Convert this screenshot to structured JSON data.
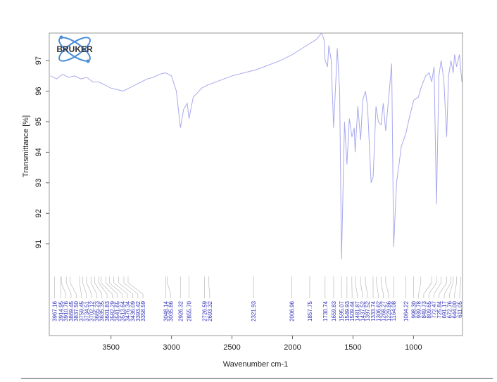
{
  "chart_data": {
    "type": "line",
    "logo": "BRUKER",
    "xlabel": "Wavenumber cm-1",
    "ylabel": "Transmittance [%]",
    "xlim": [
      4010,
      595
    ],
    "ylim": [
      88.0,
      97.9
    ],
    "xticks": [
      3500,
      3000,
      2500,
      2000,
      1500,
      1000
    ],
    "yticks": [
      91,
      92,
      93,
      94,
      95,
      96,
      97
    ],
    "color": "#a9a9ec",
    "peak_color": "#3333bb",
    "x": [
      4000,
      3950,
      3900,
      3850,
      3800,
      3750,
      3700,
      3650,
      3600,
      3550,
      3500,
      3450,
      3400,
      3350,
      3300,
      3250,
      3200,
      3150,
      3100,
      3050,
      3000,
      2960,
      2926,
      2900,
      2870,
      2855,
      2820,
      2750,
      2700,
      2600,
      2500,
      2400,
      2300,
      2200,
      2100,
      2000,
      1900,
      1800,
      1760,
      1740,
      1730,
      1710,
      1700,
      1680,
      1660,
      1640,
      1630,
      1610,
      1595,
      1570,
      1550,
      1530,
      1509,
      1490,
      1482,
      1460,
      1437,
      1420,
      1397,
      1380,
      1350,
      1333,
      1310,
      1290,
      1268,
      1250,
      1230,
      1200,
      1180,
      1164,
      1140,
      1100,
      1064,
      1030,
      998,
      960,
      939,
      900,
      870,
      850,
      830,
      810,
      790,
      772,
      750,
      726,
      710,
      691,
      672,
      660,
      644,
      620,
      600
    ],
    "values": [
      96.5,
      96.4,
      96.55,
      96.45,
      96.5,
      96.4,
      96.45,
      96.3,
      96.3,
      96.2,
      96.1,
      96.05,
      96.0,
      96.1,
      96.2,
      96.3,
      96.4,
      96.45,
      96.55,
      96.6,
      96.5,
      96.0,
      94.8,
      95.4,
      95.6,
      95.1,
      95.8,
      96.1,
      96.2,
      96.35,
      96.5,
      96.6,
      96.7,
      96.85,
      97.0,
      97.2,
      97.45,
      97.7,
      97.9,
      97.7,
      97.0,
      96.8,
      97.5,
      97.0,
      94.8,
      96.5,
      97.4,
      96.0,
      90.5,
      95.0,
      93.6,
      95.1,
      94.5,
      94.8,
      94.0,
      95.5,
      94.4,
      95.7,
      96.0,
      95.5,
      93.0,
      93.2,
      95.5,
      95.0,
      94.9,
      95.6,
      94.7,
      96.0,
      96.9,
      90.9,
      93.0,
      94.2,
      94.6,
      95.2,
      95.7,
      95.8,
      96.1,
      96.5,
      96.6,
      96.3,
      96.8,
      92.3,
      96.5,
      97.0,
      96.4,
      94.5,
      96.5,
      97.0,
      96.6,
      97.2,
      96.8,
      97.2,
      96.3
    ],
    "peaks": [
      3967.16,
      3914.95,
      3910.76,
      3869.45,
      {
        "value": 3837.5,
        "label": "3837.50"
      },
      3759.45,
      3734.51,
      3702.12,
      3665.23,
      3635.35,
      3601.83,
      3582.29,
      3541.65,
      3513.64,
      3476.34,
      3436.09,
      3393.42,
      3358.59,
      3048.14,
      3035.86,
      2926.32,
      {
        "value": 2855.7,
        "label": "2855.70"
      },
      2726.59,
      2693.32,
      2321.93,
      2006.96,
      1857.75,
      1730.74,
      1659.83,
      1595.07,
      1549.93,
      1509.44,
      1481.87,
      1437.52,
      1397.52,
      1333.74,
      1306.62,
      1268.27,
      1229.86,
      1164.08,
      1064.22,
      {
        "value": 998.3,
        "label": "998.30"
      },
      939.78,
      849.73,
      809.65,
      772.47,
      725.84,
      691.17,
      672.76,
      {
        "value": 644,
        "label": "644.00"
      },
      611.05
    ]
  }
}
